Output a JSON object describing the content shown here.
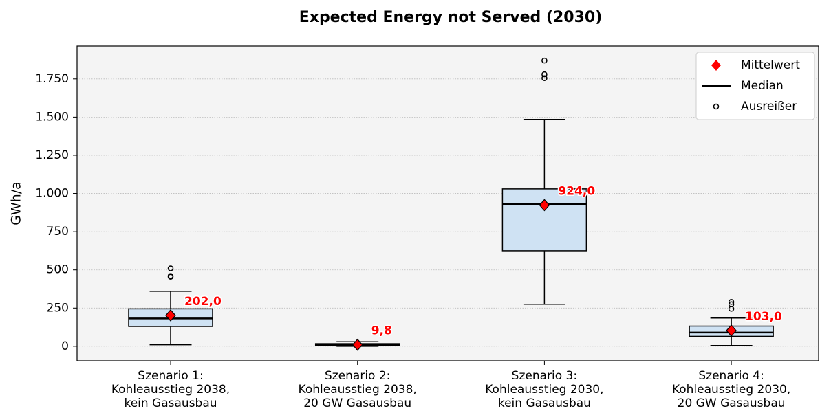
{
  "chart_data": {
    "type": "box",
    "title": "Expected Energy not Served (2030)",
    "y_label": "GWh/a",
    "categories": [
      "Szenario 1:\nKohleausstieg 2038,\nkein Gasausbau",
      "Szenario 2:\nKohleausstieg 2038,\n20 GW Gasausbau",
      "Szenario 3:\nKohleausstieg 2030,\nkein Gasausbau",
      "Szenario 4:\nKohleausstieg 2030,\n20 GW Gasausbau"
    ],
    "boxes": [
      {
        "min": 10,
        "q1": 130,
        "median": 182,
        "q3": 245,
        "max": 360,
        "outliers": [
          510,
          460,
          455
        ],
        "mean": 202.0,
        "mean_label": "202,0"
      },
      {
        "min": 0,
        "q1": 4,
        "median": 9,
        "q3": 17,
        "max": 30,
        "outliers": [],
        "mean": 9.8,
        "mean_label": "9,8"
      },
      {
        "min": 275,
        "q1": 625,
        "median": 930,
        "q3": 1030,
        "max": 1485,
        "outliers": [
          1870,
          1780,
          1755
        ],
        "mean": 924.0,
        "mean_label": "924,0"
      },
      {
        "min": 5,
        "q1": 65,
        "median": 90,
        "q3": 132,
        "max": 185,
        "outliers": [
          290,
          275,
          245
        ],
        "mean": 103.0,
        "mean_label": "103,0"
      }
    ],
    "box_color": "#cfe2f3",
    "mean_color": "#ff0000",
    "ylim": [
      -95,
      1965
    ],
    "yticks": [
      0,
      250,
      500,
      750,
      {
        "value": 1000,
        "label": "1.000"
      },
      {
        "value": 1250,
        "label": "1.250"
      },
      {
        "value": 1500,
        "label": "1.500"
      },
      {
        "value": 1750,
        "label": "1.750"
      }
    ],
    "grid": true,
    "legend": {
      "loc": "upper right",
      "mean": "Mittelwert",
      "median": "Median",
      "outliers": "Ausreißer"
    }
  }
}
